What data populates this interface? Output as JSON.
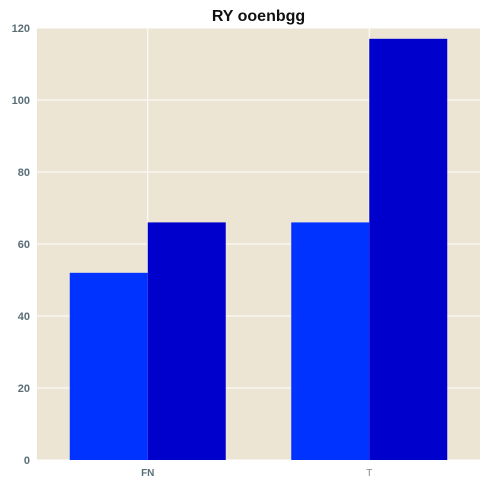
{
  "chart_data": {
    "type": "bar",
    "title": "RY ooenbgg",
    "xlabel": "",
    "ylabel": "",
    "categories": [
      "FN",
      "T"
    ],
    "series": [
      {
        "values": [
          52,
          66
        ],
        "color": "#0033ff"
      },
      {
        "values": [
          66,
          117
        ],
        "color": "#0000cc"
      }
    ],
    "ylim": [
      0,
      120
    ],
    "yticks": [
      "0",
      "20",
      "40",
      "60",
      "80",
      "100",
      "120"
    ],
    "grid": true,
    "background": "#ede5d4",
    "legend": "none"
  }
}
